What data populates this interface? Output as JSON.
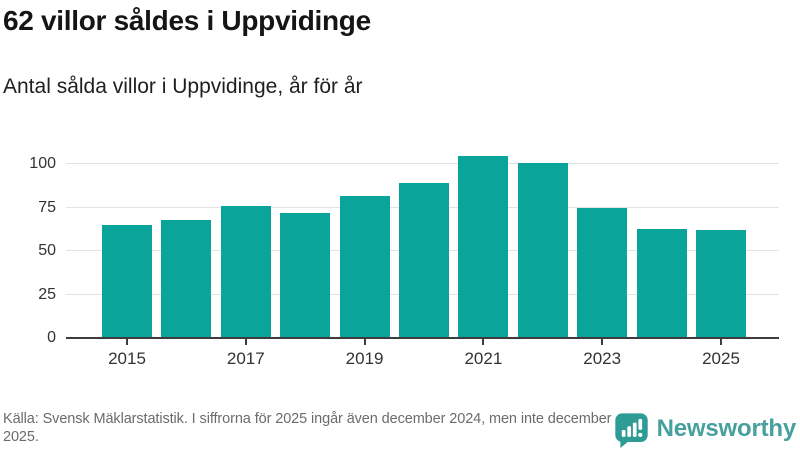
{
  "header": {
    "title": "62 villor såldes i Uppvidinge",
    "subtitle": "Antal sålda villor i Uppvidinge, år för år"
  },
  "chart_data": {
    "type": "bar",
    "title": "62 villor såldes i Uppvidinge",
    "subtitle": "Antal sålda villor i Uppvidinge, år för år",
    "categories": [
      "2015",
      "2016",
      "2017",
      "2018",
      "2019",
      "2020",
      "2021",
      "2022",
      "2023",
      "2024",
      "2025"
    ],
    "values": [
      65,
      68,
      76,
      72,
      82,
      89,
      105,
      101,
      75,
      63,
      62
    ],
    "xlabel": "",
    "ylabel": "",
    "ylim": [
      0,
      110
    ],
    "yticks": [
      0,
      25,
      50,
      75,
      100
    ],
    "xtick_labels": [
      "2015",
      "2017",
      "2019",
      "2021",
      "2023",
      "2025"
    ],
    "bar_color": "#0BA49B",
    "grid": "horizontal",
    "legend": "none"
  },
  "footer": {
    "source": "Källa: Svensk Mäklarstatistik. I siffrorna för 2025 ingår även december 2024, men inte december 2025.",
    "brand": {
      "name": "Newsworthy",
      "color": "#46A09E",
      "icon": "bar-chart-speech-bubble-icon",
      "icon_color": "#2E9B94"
    }
  }
}
